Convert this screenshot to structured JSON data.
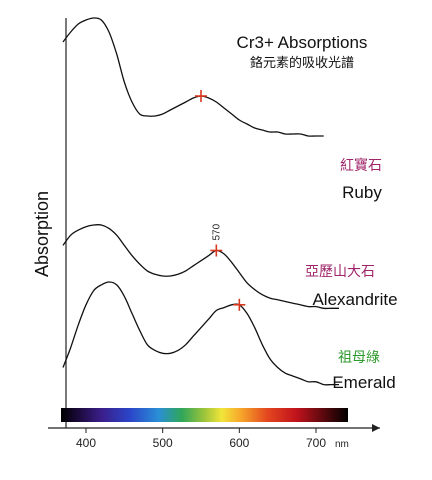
{
  "chart_data": {
    "type": "line",
    "title": "Cr3+ Absorptions",
    "subtitle": "鉻元素的吸收光譜",
    "ylabel": "Absorption",
    "xlabel": "",
    "x_unit": "nm",
    "x_ticks": [
      "400",
      "500",
      "600",
      "700"
    ],
    "xlim": [
      370,
      750
    ],
    "grid": false,
    "series": [
      {
        "name": "Ruby",
        "label_cn": "紅寶石",
        "label_cn_color": "#a0246a",
        "x": [
          370,
          380,
          390,
          400,
          410,
          420,
          430,
          440,
          450,
          460,
          470,
          480,
          490,
          500,
          510,
          520,
          530,
          540,
          550,
          560,
          570,
          580,
          590,
          600,
          610,
          620,
          630,
          640,
          650,
          660,
          670,
          680,
          690,
          700,
          710
        ],
        "y": [
          0.88,
          0.93,
          0.97,
          0.99,
          1.0,
          0.99,
          0.93,
          0.82,
          0.68,
          0.58,
          0.52,
          0.51,
          0.51,
          0.52,
          0.54,
          0.56,
          0.58,
          0.6,
          0.61,
          0.6,
          0.58,
          0.55,
          0.52,
          0.49,
          0.47,
          0.45,
          0.44,
          0.43,
          0.43,
          0.42,
          0.42,
          0.42,
          0.41,
          0.41,
          0.41
        ],
        "peak": 550
      },
      {
        "name": "Alexandrite",
        "label_cn": "亞歷山大石",
        "label_cn_color": "#a0246a",
        "x": [
          370,
          380,
          390,
          400,
          410,
          420,
          430,
          440,
          450,
          460,
          470,
          480,
          490,
          500,
          510,
          520,
          530,
          540,
          550,
          560,
          570,
          580,
          590,
          600,
          610,
          620,
          630,
          640,
          650,
          660,
          670,
          680,
          690,
          700,
          710,
          720,
          730
        ],
        "y": [
          0.58,
          0.64,
          0.67,
          0.69,
          0.7,
          0.7,
          0.68,
          0.64,
          0.58,
          0.52,
          0.47,
          0.43,
          0.41,
          0.4,
          0.4,
          0.41,
          0.43,
          0.46,
          0.49,
          0.52,
          0.55,
          0.53,
          0.48,
          0.42,
          0.36,
          0.32,
          0.29,
          0.27,
          0.26,
          0.25,
          0.24,
          0.23,
          0.22,
          0.22,
          0.21,
          0.21,
          0.21
        ],
        "peak": 570,
        "peak_annotation": "570"
      },
      {
        "name": "Emerald",
        "label_cn": "祖母綠",
        "label_cn_color": "#2e9b2e",
        "x": [
          370,
          380,
          390,
          400,
          410,
          420,
          430,
          440,
          450,
          460,
          470,
          480,
          490,
          500,
          510,
          520,
          530,
          540,
          550,
          560,
          570,
          580,
          590,
          600,
          610,
          620,
          630,
          640,
          650,
          660,
          670,
          680,
          690,
          700,
          710,
          720,
          730
        ],
        "y": [
          0.1,
          0.17,
          0.25,
          0.32,
          0.37,
          0.39,
          0.4,
          0.39,
          0.35,
          0.29,
          0.23,
          0.18,
          0.16,
          0.15,
          0.15,
          0.16,
          0.18,
          0.21,
          0.24,
          0.27,
          0.3,
          0.31,
          0.32,
          0.32,
          0.29,
          0.24,
          0.18,
          0.13,
          0.1,
          0.08,
          0.07,
          0.06,
          0.05,
          0.05,
          0.04,
          0.04,
          0.04
        ],
        "peak": 600
      }
    ]
  }
}
